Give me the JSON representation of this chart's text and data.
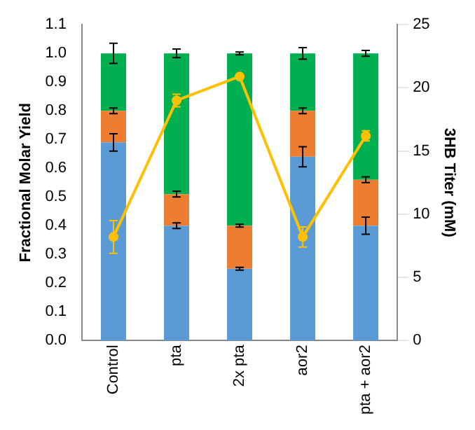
{
  "chart_data": {
    "type": "bar",
    "stacked": true,
    "categories": [
      "Control",
      "pta",
      "2x pta",
      "aor2",
      "pta + aor2"
    ],
    "ylabel": "Fractional Molar Yield",
    "y2label": "3HB Titer (mM)",
    "series": [
      {
        "color": "#5b9bd5",
        "values": [
          0.69,
          0.4,
          0.25,
          0.64,
          0.4
        ],
        "errors": [
          0.03,
          0.01,
          0.005,
          0.035,
          0.03
        ]
      },
      {
        "color": "#ed7d31",
        "values": [
          0.11,
          0.11,
          0.15,
          0.16,
          0.16
        ],
        "errors": [
          0.01,
          0.01,
          0.005,
          0.01,
          0.01
        ]
      },
      {
        "color": "#00b050",
        "values": [
          0.2,
          0.49,
          0.6,
          0.2,
          0.44
        ],
        "errors": [
          0.035,
          0.015,
          0.005,
          0.02,
          0.01
        ]
      },
      {
        "type": "line",
        "axis": "y2",
        "color": "#ffc000",
        "marker": "circle",
        "values": [
          8.2,
          19.0,
          20.9,
          8.2,
          16.2
        ],
        "errors": [
          1.3,
          0.5,
          null,
          0.8,
          0.4
        ]
      }
    ],
    "ylim": [
      0,
      1.1
    ],
    "yticks": [
      {
        "value": 0,
        "label": "0.0"
      },
      {
        "value": 0.1,
        "label": "0.1"
      },
      {
        "value": 0.2,
        "label": "0.2"
      },
      {
        "value": 0.3,
        "label": "0.3"
      },
      {
        "value": 0.4,
        "label": "0.4"
      },
      {
        "value": 0.5,
        "label": "0.5"
      },
      {
        "value": 0.6,
        "label": "0.6"
      },
      {
        "value": 0.7,
        "label": "0.7"
      },
      {
        "value": 0.8,
        "label": "0.8"
      },
      {
        "value": 0.9,
        "label": "0.9"
      },
      {
        "value": 1,
        "label": "1.0"
      },
      {
        "value": 1.1,
        "label": "1.1"
      }
    ],
    "y2lim": [
      0,
      25
    ],
    "y2ticks": [
      0,
      5,
      10,
      15,
      20,
      25
    ],
    "grid": false,
    "legend": false
  }
}
